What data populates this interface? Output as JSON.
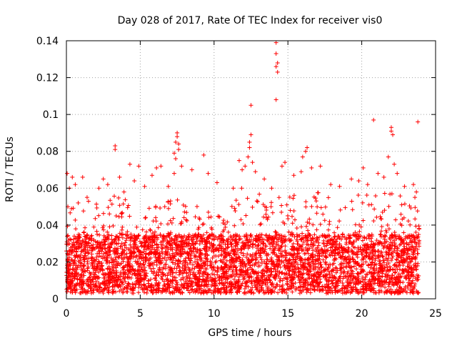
{
  "chart_data": {
    "type": "scatter",
    "title": "Day 028 of 2017, Rate Of TEC Index for receiver vis0",
    "xlabel": "GPS time / hours",
    "ylabel": "ROTI / TECUs",
    "xlim": [
      0,
      25
    ],
    "ylim": [
      0,
      0.14
    ],
    "x_ticks": [
      "0",
      "5",
      "10",
      "15",
      "20",
      "25"
    ],
    "y_ticks": [
      "0",
      "0.02",
      "0.04",
      "0.06",
      "0.08",
      "0.1",
      "0.12",
      "0.14"
    ],
    "grid": true,
    "marker": "+",
    "series_color": "#ff0000",
    "series": [
      {
        "points": [
          [
            0.05,
            0.068
          ],
          [
            0.1,
            0.05
          ],
          [
            0.2,
            0.06
          ],
          [
            0.4,
            0.066
          ],
          [
            0.6,
            0.062
          ],
          [
            0.8,
            0.052
          ],
          [
            1.1,
            0.066
          ],
          [
            1.4,
            0.055
          ],
          [
            2.2,
            0.06
          ],
          [
            2.5,
            0.065
          ],
          [
            2.8,
            0.062
          ],
          [
            3.3,
            0.083
          ],
          [
            3.3,
            0.081
          ],
          [
            3.6,
            0.066
          ],
          [
            3.9,
            0.058
          ],
          [
            4.3,
            0.073
          ],
          [
            4.6,
            0.064
          ],
          [
            4.9,
            0.072
          ],
          [
            5.3,
            0.061
          ],
          [
            5.8,
            0.067
          ],
          [
            6.1,
            0.071
          ],
          [
            6.4,
            0.072
          ],
          [
            6.9,
            0.061
          ],
          [
            7.3,
            0.068
          ],
          [
            7.5,
            0.09
          ],
          [
            7.5,
            0.088
          ],
          [
            7.4,
            0.085
          ],
          [
            7.6,
            0.084
          ],
          [
            7.6,
            0.081
          ],
          [
            7.3,
            0.079
          ],
          [
            7.4,
            0.076
          ],
          [
            7.8,
            0.072
          ],
          [
            8.5,
            0.07
          ],
          [
            9.3,
            0.078
          ],
          [
            9.6,
            0.068
          ],
          [
            10.2,
            0.063
          ],
          [
            11.3,
            0.06
          ],
          [
            11.7,
            0.075
          ],
          [
            11.9,
            0.07
          ],
          [
            12.1,
            0.072
          ],
          [
            12.3,
            0.077
          ],
          [
            12.4,
            0.085
          ],
          [
            12.4,
            0.082
          ],
          [
            12.5,
            0.105
          ],
          [
            12.5,
            0.089
          ],
          [
            12.6,
            0.074
          ],
          [
            12.8,
            0.069
          ],
          [
            13.4,
            0.065
          ],
          [
            13.9,
            0.06
          ],
          [
            14.2,
            0.139
          ],
          [
            14.2,
            0.133
          ],
          [
            14.3,
            0.128
          ],
          [
            14.2,
            0.126
          ],
          [
            14.3,
            0.123
          ],
          [
            14.2,
            0.108
          ],
          [
            14.6,
            0.072
          ],
          [
            14.8,
            0.074
          ],
          [
            15.4,
            0.067
          ],
          [
            15.9,
            0.069
          ],
          [
            16.2,
            0.08
          ],
          [
            16.3,
            0.082
          ],
          [
            16.0,
            0.077
          ],
          [
            16.6,
            0.071
          ],
          [
            17.2,
            0.072
          ],
          [
            17.9,
            0.062
          ],
          [
            18.5,
            0.061
          ],
          [
            19.3,
            0.065
          ],
          [
            19.8,
            0.064
          ],
          [
            20.1,
            0.071
          ],
          [
            20.4,
            0.062
          ],
          [
            20.8,
            0.097
          ],
          [
            21.1,
            0.068
          ],
          [
            21.5,
            0.066
          ],
          [
            21.8,
            0.077
          ],
          [
            22.0,
            0.093
          ],
          [
            22.0,
            0.091
          ],
          [
            22.1,
            0.089
          ],
          [
            22.2,
            0.073
          ],
          [
            22.4,
            0.068
          ],
          [
            22.9,
            0.061
          ],
          [
            23.5,
            0.062
          ],
          [
            23.8,
            0.096
          ],
          [
            23.7,
            0.058
          ],
          [
            23.6,
            0.055
          ]
        ]
      }
    ],
    "dense_band": {
      "x_range": [
        0,
        23.9
      ],
      "baseline_y_range": [
        0.003,
        0.035
      ],
      "envelope_hours": [
        0,
        1,
        2,
        3,
        4,
        5,
        6,
        7,
        8,
        9,
        10,
        11,
        12,
        13,
        14,
        15,
        16,
        17,
        18,
        19,
        20,
        21,
        22,
        23,
        24
      ],
      "envelope_max": [
        0.05,
        0.054,
        0.052,
        0.056,
        0.058,
        0.052,
        0.05,
        0.054,
        0.058,
        0.052,
        0.048,
        0.05,
        0.062,
        0.058,
        0.054,
        0.058,
        0.056,
        0.058,
        0.054,
        0.052,
        0.058,
        0.058,
        0.06,
        0.054,
        0.05
      ],
      "count": 4200
    }
  }
}
